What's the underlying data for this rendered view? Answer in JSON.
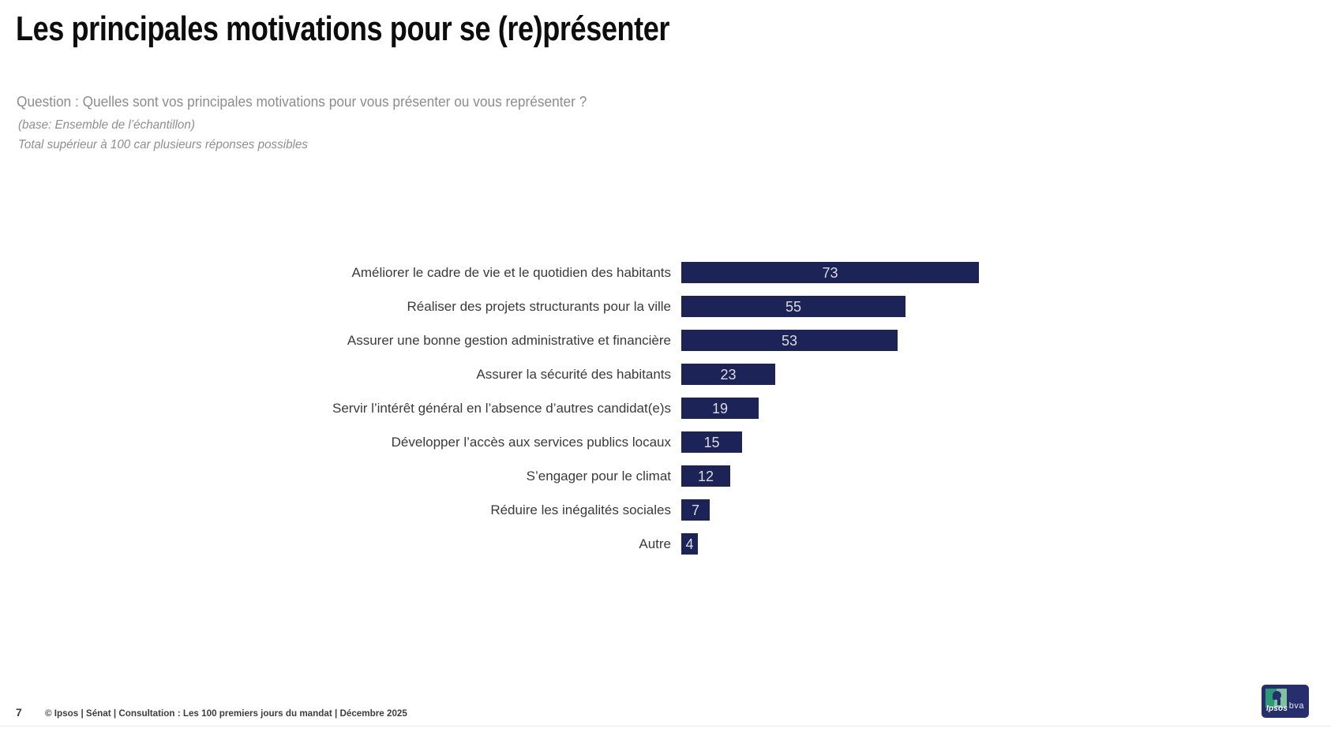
{
  "page": {
    "title": "Les principales motivations pour se (re)présenter",
    "question": "Question : Quelles sont vos principales motivations pour vous présenter ou vous représenter ?",
    "base_note": "(base: Ensemble de l’échantillon)",
    "method_note": "Total supérieur à 100 car plusieurs réponses possibles"
  },
  "chart_data": {
    "type": "bar",
    "orientation": "horizontal",
    "title": "Les principales motivations pour se (re)présenter",
    "categories": [
      "Améliorer le cadre de vie et le quotidien des habitants",
      "Réaliser des projets structurants pour la ville",
      "Assurer une bonne gestion administrative et financière",
      "Assurer la sécurité des habitants",
      "Servir l’intérêt général en l’absence d’autres candidat(e)s",
      "Développer l’accès aux services publics locaux",
      "S’engager pour le climat",
      "Réduire les inégalités sociales",
      "Autre"
    ],
    "values": [
      73,
      55,
      53,
      23,
      19,
      15,
      12,
      7,
      4
    ],
    "value_labels_shown": true,
    "unit": "%",
    "xlim": [
      0,
      100
    ],
    "grid": false,
    "bar_color": "#1b2357",
    "value_label_color": "#dcdcdc",
    "label_color": "#3a3a3a"
  },
  "footer": {
    "page_number": "7",
    "copyright": "© Ipsos | Sénat | Consultation : Les 100 premiers jours du mandat | Décembre 2025",
    "logo": {
      "brand_left": "Ipsos",
      "brand_right": "bva"
    }
  }
}
